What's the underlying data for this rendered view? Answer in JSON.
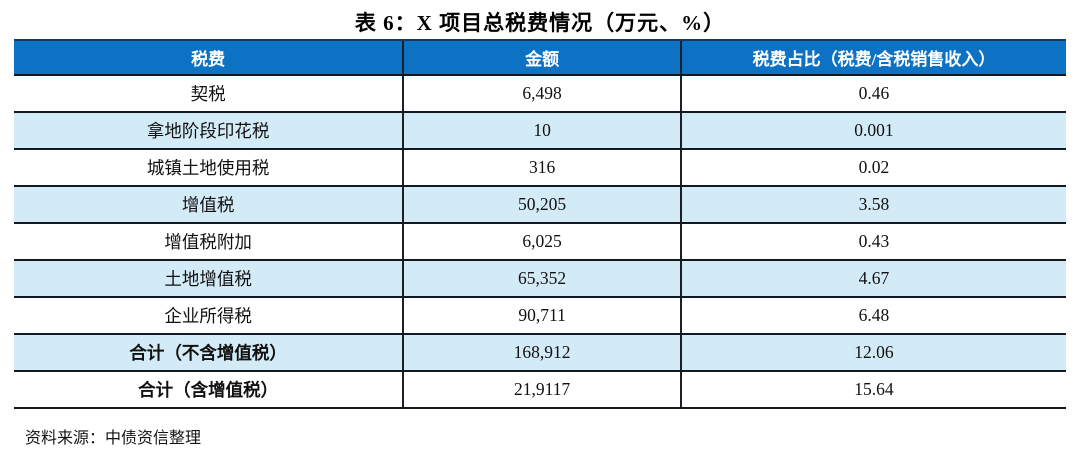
{
  "title": "表 6：X 项目总税费情况（万元、%）",
  "table": {
    "headers": [
      "税费",
      "金额",
      "税费占比（税费/含税销售收入）"
    ],
    "rows": [
      {
        "cells": [
          "契税",
          "6,498",
          "0.46"
        ]
      },
      {
        "cells": [
          "拿地阶段印花税",
          "10",
          "0.001"
        ]
      },
      {
        "cells": [
          "城镇土地使用税",
          "316",
          "0.02"
        ]
      },
      {
        "cells": [
          "增值税",
          "50,205",
          "3.58"
        ]
      },
      {
        "cells": [
          "增值税附加",
          "6,025",
          "0.43"
        ]
      },
      {
        "cells": [
          "土地增值税",
          "65,352",
          "4.67"
        ]
      },
      {
        "cells": [
          "企业所得税",
          "90,711",
          "6.48"
        ]
      },
      {
        "cells": [
          "合计（不含增值税）",
          "168,912",
          "12.06"
        ]
      },
      {
        "cells": [
          "合计（含增值税）",
          "21,9117",
          "15.64"
        ]
      }
    ]
  },
  "footer": {
    "source": "资料来源：中债资信整理"
  },
  "colors": {
    "header_bg": "#0e72c4",
    "header_text": "#ffffff",
    "zebra_row_bg": "#d3eaf7",
    "border_dark": "#14181f",
    "border_top_navy": "#17375e"
  }
}
